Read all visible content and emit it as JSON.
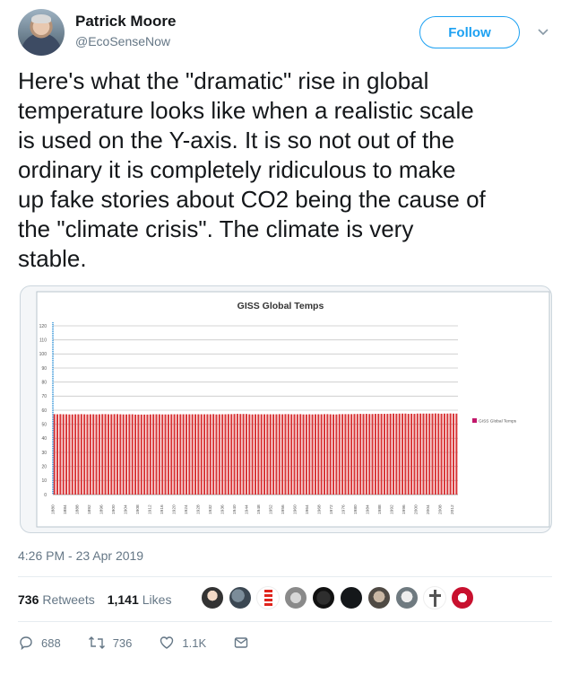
{
  "author": {
    "name": "Patrick Moore",
    "handle": "@EcoSenseNow",
    "follow_label": "Follow"
  },
  "tweet": {
    "text": "Here's what the \"dramatic\" rise in global\ntemperature looks like when a realistic scale\nis used on the Y-axis. It is so not out of the\nordinary it is completely ridiculous to make\nup fake stories about CO2 being the cause of\nthe \"climate crisis\". The climate is very\nstable.",
    "timestamp": "4:26 PM - 23 Apr 2019"
  },
  "stats": {
    "retweets_count": "736",
    "retweets_label": "Retweets",
    "likes_count": "1,141",
    "likes_label": "Likes"
  },
  "actions": {
    "replies": "688",
    "retweets": "736",
    "likes": "1.1K"
  },
  "colors": {
    "accent": "#1da1f2",
    "bar": "#d9383a",
    "baseline": "#2a8fd6"
  },
  "chart_data": {
    "type": "bar",
    "title": "GISS Global Temps",
    "legend": "GISS Global Temps",
    "legend_position": "right",
    "ylim": [
      0,
      120
    ],
    "yticks": [
      0,
      10,
      20,
      30,
      40,
      50,
      60,
      70,
      80,
      90,
      100,
      110,
      120
    ],
    "grid": true,
    "x_tick_labels": [
      "1880",
      "1884",
      "1888",
      "1892",
      "1896",
      "1900",
      "1904",
      "1908",
      "1912",
      "1916",
      "1920",
      "1924",
      "1928",
      "1932",
      "1936",
      "1940",
      "1944",
      "1948",
      "1952",
      "1956",
      "1960",
      "1964",
      "1968",
      "1972",
      "1976",
      "1980",
      "1984",
      "1988",
      "1992",
      "1996",
      "2000",
      "2004",
      "2008",
      "2012"
    ],
    "x_start": 1880,
    "x_end": 2014,
    "values": [
      57.2,
      57.1,
      57.2,
      57.1,
      57.1,
      57.0,
      57.0,
      57.1,
      57.1,
      57.2,
      57.1,
      57.0,
      57.1,
      57.1,
      57.0,
      57.1,
      57.2,
      57.2,
      57.1,
      57.1,
      57.2,
      57.2,
      57.1,
      57.0,
      57.0,
      57.1,
      57.1,
      56.9,
      56.9,
      56.9,
      56.9,
      56.9,
      57.0,
      57.1,
      57.1,
      57.1,
      57.0,
      57.0,
      57.0,
      57.1,
      57.1,
      57.1,
      57.1,
      57.1,
      57.1,
      57.1,
      57.1,
      57.1,
      57.1,
      57.1,
      57.1,
      57.1,
      57.1,
      57.2,
      57.0,
      57.1,
      57.1,
      57.1,
      57.2,
      57.2,
      57.3,
      57.4,
      57.3,
      57.3,
      57.3,
      57.1,
      57.0,
      57.1,
      57.1,
      57.1,
      57.1,
      57.1,
      57.1,
      57.1,
      57.1,
      57.2,
      57.1,
      57.2,
      57.2,
      57.1,
      57.1,
      57.1,
      57.2,
      57.0,
      57.0,
      57.1,
      57.0,
      57.1,
      57.1,
      57.1,
      57.2,
      57.2,
      57.1,
      57.0,
      57.0,
      57.2,
      57.2,
      57.2,
      57.2,
      57.2,
      57.3,
      57.3,
      57.4,
      57.3,
      57.4,
      57.3,
      57.3,
      57.4,
      57.4,
      57.4,
      57.4,
      57.4,
      57.5,
      57.6,
      57.5,
      57.6,
      57.6,
      57.6,
      57.4,
      57.5,
      57.4,
      57.6,
      57.6,
      57.6,
      57.6,
      57.6,
      57.6,
      57.7,
      57.6,
      57.5,
      57.6,
      57.6,
      57.7,
      57.6,
      57.6
    ]
  }
}
